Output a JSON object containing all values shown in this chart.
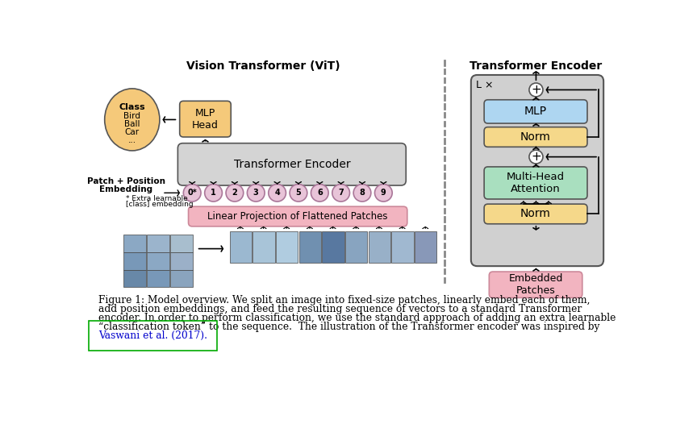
{
  "title_left": "Vision Transformer (ViT)",
  "title_right": "Transformer Encoder",
  "bg_color": "#ffffff",
  "gray_box_color": "#d4d4d4",
  "mlp_head_color": "#f5c97a",
  "class_ellipse_color": "#f5c97a",
  "transformer_encoder_box_color": "#d4d4d4",
  "linear_proj_color": "#f2b4c0",
  "embedding_circle_color": "#e8c4d8",
  "mlp_block_color": "#aed6f1",
  "norm_color": "#f5d88a",
  "attention_color": "#a9dfbf",
  "embedded_patches_color": "#f2b4c0",
  "encoder_outer_color": "#d0d0d0",
  "caption_line1": "Figure 1: Model overview. We split an image into fixed-size patches, linearly embed each of them,",
  "caption_line2": "add position embeddings, and feed the resulting sequence of vectors to a standard Transformer",
  "caption_line3": "encoder. In order to perform classification, we use the standard approach of adding an extra learnable",
  "caption_line4": "“classification token” to the sequence.  The illustration of the Transformer encoder was inspired by",
  "caption_line5": "Vaswani et al. (2017)."
}
